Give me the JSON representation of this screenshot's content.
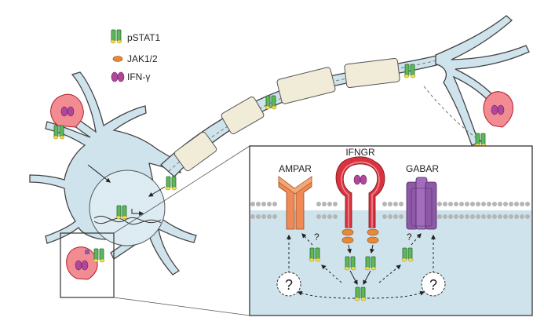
{
  "legend": {
    "pstat1": "pSTAT1",
    "jak": "JAK1/2",
    "ifng": "IFN-γ"
  },
  "inset": {
    "ampar": "AMPAR",
    "ifngr": "IFNGR",
    "gabar": "GABAR",
    "q_small_left": "?",
    "q_small_right": "?",
    "q_big_left": "?",
    "q_big_right": "?"
  },
  "colors": {
    "neuron_fill": "#cfe3ec",
    "neuron_stroke": "#444444",
    "myelin": "#f1ecd8",
    "stat_green": "#5cb85c",
    "phospho_yellow": "#f3e04f",
    "jak_orange": "#e8893a",
    "ifng_magenta": "#b0479a",
    "receptor_red": "#d9333f",
    "ampar_orange": "#ee8a55",
    "gabar_purple": "#8e5aa8",
    "membrane_grey": "#b5b5b5",
    "inset_bg": "#ffffff",
    "cytoplasm": "#cfe3ec"
  },
  "icons": [
    "pstat1-dimer-icon",
    "jak-icon",
    "ifn-gamma-icon",
    "question-mark-icon"
  ]
}
